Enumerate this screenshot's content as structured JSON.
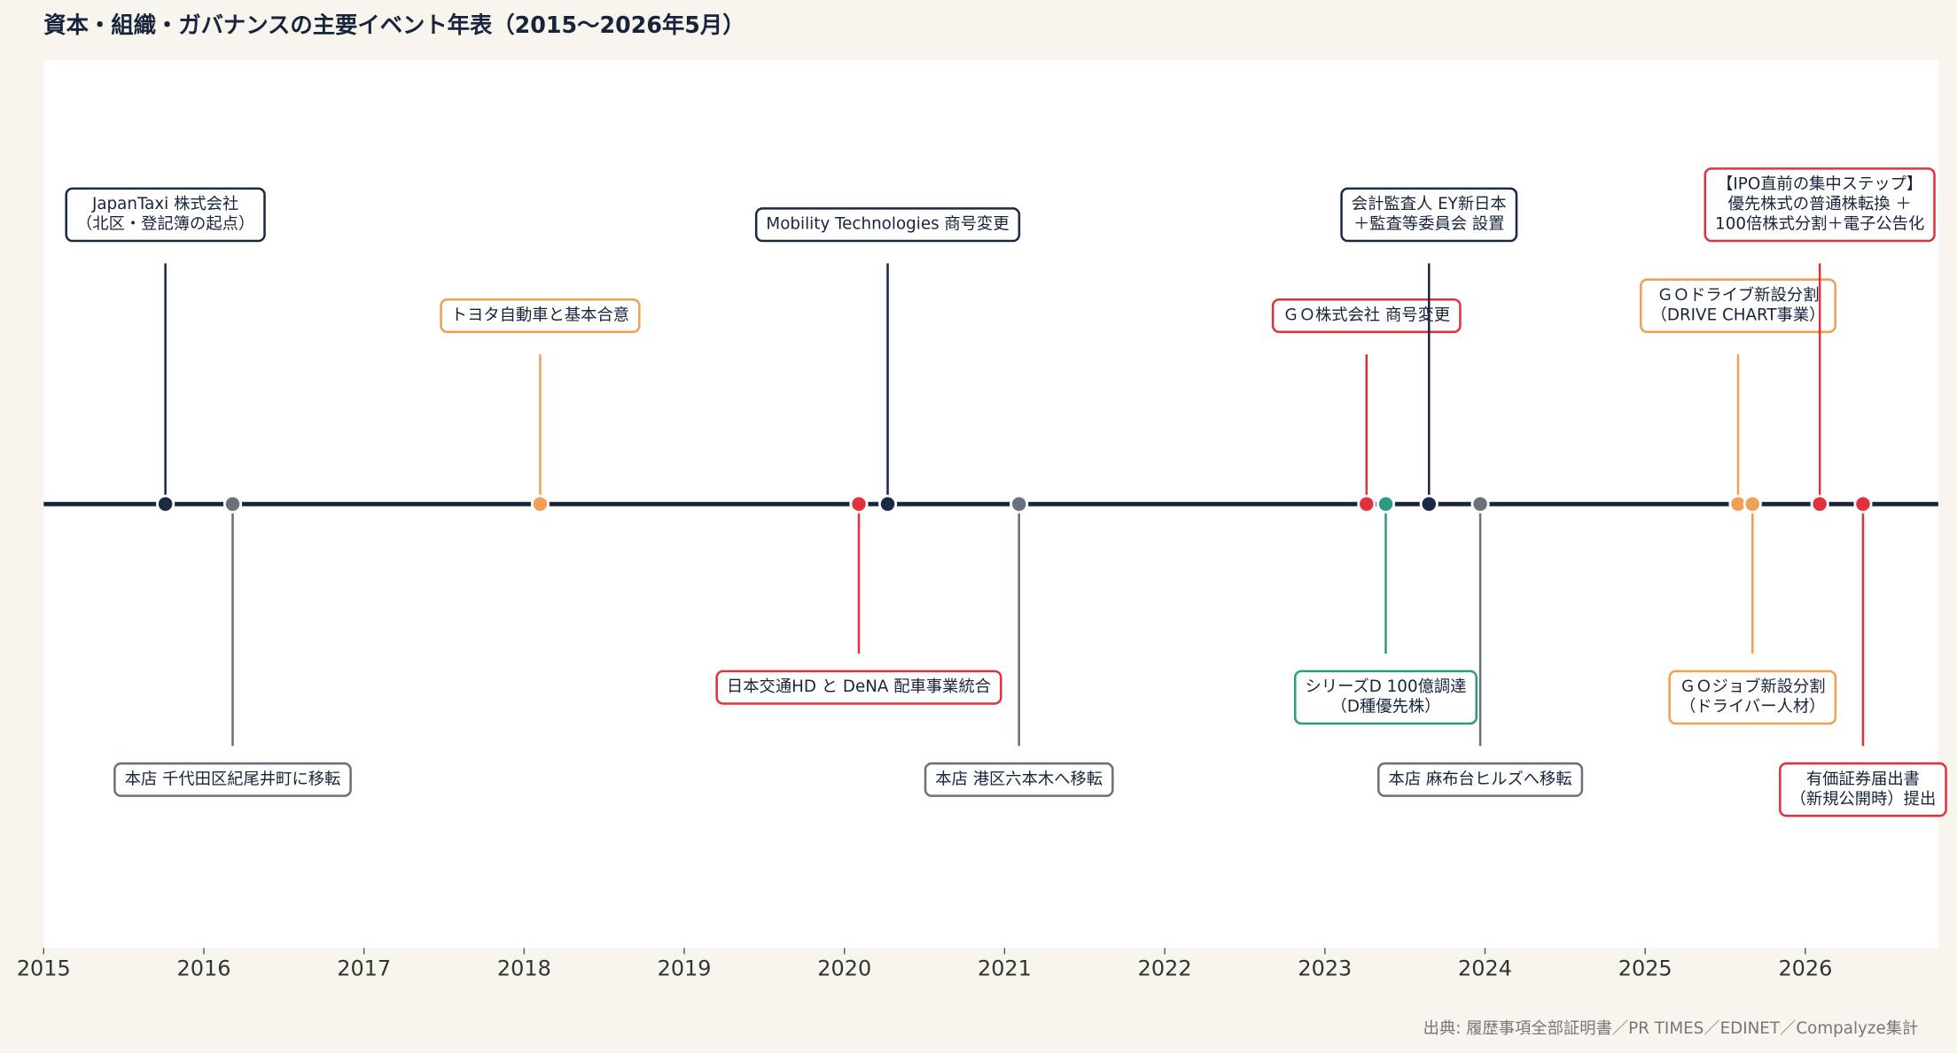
{
  "chart_data": {
    "type": "timeline",
    "title": "資本・組織・ガバナンスの主要イベント年表（2015〜2026年5月）",
    "source": "出典: 履歴事項全部証明書／PR TIMES／EDINET／Compalyze集計",
    "xlim": [
      2015,
      2026.83
    ],
    "xticks": [
      2015,
      2016,
      2017,
      2018,
      2019,
      2020,
      2021,
      2022,
      2023,
      2024,
      2025,
      2026
    ],
    "axis_color": "#17243b",
    "events": [
      {
        "x": 2015.76,
        "side": "up",
        "color": "#1b2a44",
        "label": [
          "JapanTaxi 株式会社",
          "（北区・登記簿の起点）"
        ]
      },
      {
        "x": 2016.18,
        "side": "down",
        "color": "#6b717b",
        "label": [
          "本店 千代田区紀尾井町に移転"
        ]
      },
      {
        "x": 2018.1,
        "side": "up",
        "color": "#f0a055",
        "label": [
          "トヨタ自動車と基本合意"
        ]
      },
      {
        "x": 2020.09,
        "side": "down",
        "color": "#e0323c",
        "label": [
          "日本交通HD と DeNA 配車事業統合"
        ]
      },
      {
        "x": 2020.27,
        "side": "up",
        "color": "#1b2a44",
        "label": [
          "Mobility Technologies 商号変更"
        ]
      },
      {
        "x": 2021.09,
        "side": "down",
        "color": "#6b717b",
        "label": [
          "本店 港区六本木へ移転"
        ]
      },
      {
        "x": 2023.26,
        "side": "up",
        "color": "#e0323c",
        "label": [
          "ＧＯ株式会社 商号変更"
        ]
      },
      {
        "x": 2023.38,
        "side": "down",
        "color": "#2a9d80",
        "label": [
          "シリーズD 100億調達",
          "（D種優先株）"
        ]
      },
      {
        "x": 2023.65,
        "side": "up",
        "color": "#1b2a44",
        "label": [
          "会計監査人 EY新日本",
          "＋監査等委員会 設置"
        ]
      },
      {
        "x": 2023.97,
        "side": "down",
        "color": "#6b717b",
        "label": [
          "本店 麻布台ヒルズへ移転"
        ]
      },
      {
        "x": 2025.58,
        "side": "up",
        "color": "#f0a055",
        "label": [
          "ＧＯドライブ新設分割",
          "（DRIVE CHART事業）"
        ]
      },
      {
        "x": 2025.67,
        "side": "down",
        "color": "#f0a055",
        "label": [
          "ＧＯジョブ新設分割",
          "（ドライバー人材）"
        ]
      },
      {
        "x": 2026.09,
        "side": "up",
        "color": "#e0323c",
        "label": [
          "【IPO直前の集中ステップ】",
          "優先株式の普通株転換 ＋",
          "100倍株式分割＋電子公告化"
        ]
      },
      {
        "x": 2026.36,
        "side": "down",
        "color": "#e0323c",
        "label": [
          "有価証券届出書",
          "（新規公開時）提出"
        ]
      }
    ]
  }
}
